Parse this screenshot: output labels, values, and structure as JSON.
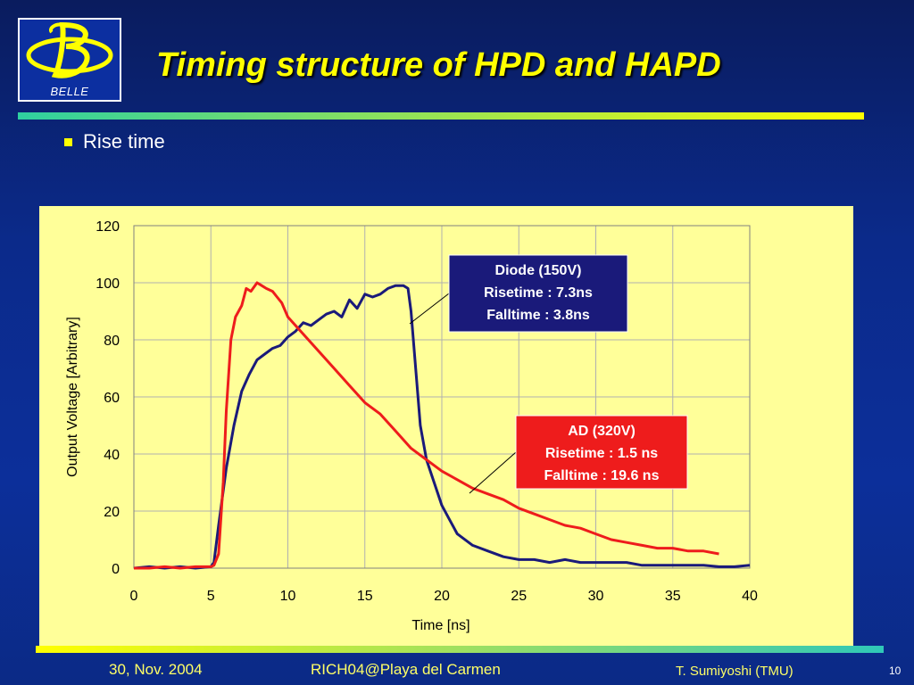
{
  "logo": {
    "text": "BELLE"
  },
  "slide": {
    "title": "Timing structure of HPD and HAPD",
    "bullet": "Rise time"
  },
  "footer": {
    "date": "30, Nov. 2004",
    "event": "RICH04@Playa del Carmen",
    "author": "T. Sumiyoshi (TMU)",
    "page": "10"
  },
  "colors": {
    "title": "#ffff00",
    "chart_background": "#ffff99",
    "diode_series": "#1a1a7a",
    "ad_series": "#ee1c1c"
  },
  "chart_data": {
    "type": "line",
    "xlabel": "Time [ns]",
    "ylabel": "Output Voltage [Arbitrary]",
    "xlim": [
      0,
      40
    ],
    "ylim": [
      0,
      120
    ],
    "xticks": [
      0,
      5,
      10,
      15,
      20,
      25,
      30,
      35,
      40
    ],
    "yticks": [
      0,
      20,
      40,
      60,
      80,
      100,
      120
    ],
    "grid": true,
    "series": [
      {
        "key": "diode",
        "color": "#1a1a7a",
        "x": [
          0,
          1,
          2,
          3,
          4,
          5,
          5.2,
          5.5,
          6,
          6.5,
          7,
          7.5,
          8,
          8.5,
          9,
          9.5,
          10,
          10.5,
          11,
          11.5,
          12,
          12.5,
          13,
          13.5,
          14,
          14.5,
          15,
          15.5,
          16,
          16.5,
          17,
          17.5,
          17.8,
          18,
          18.3,
          18.6,
          19,
          19.5,
          20,
          20.5,
          21,
          22,
          23,
          24,
          25,
          26,
          27,
          28,
          29,
          30,
          31,
          32,
          33,
          34,
          35,
          36,
          37,
          38,
          39,
          40
        ],
        "y": [
          0,
          0.5,
          0,
          0.5,
          0,
          0.5,
          2,
          15,
          35,
          50,
          62,
          68,
          73,
          75,
          77,
          78,
          81,
          83,
          86,
          85,
          87,
          89,
          90,
          88,
          94,
          91,
          96,
          95,
          96,
          98,
          99,
          99,
          98,
          90,
          70,
          50,
          38,
          30,
          22,
          17,
          12,
          8,
          6,
          4,
          3,
          3,
          2,
          3,
          2,
          2,
          2,
          2,
          1,
          1,
          1,
          1,
          1,
          0.5,
          0.5,
          1
        ]
      },
      {
        "key": "ad",
        "color": "#ee1c1c",
        "x": [
          0,
          1,
          2,
          3,
          4,
          5,
          5.2,
          5.5,
          5.8,
          6,
          6.3,
          6.6,
          7,
          7.3,
          7.6,
          8,
          8.3,
          8.6,
          9,
          9.3,
          9.6,
          10,
          11,
          12,
          13,
          14,
          15,
          16,
          17,
          18,
          19,
          20,
          21,
          22,
          23,
          24,
          25,
          26,
          27,
          28,
          29,
          30,
          31,
          32,
          33,
          34,
          35,
          36,
          37,
          38
        ],
        "y": [
          0,
          0,
          0.5,
          0,
          0.5,
          0.5,
          1,
          5,
          30,
          55,
          80,
          88,
          92,
          98,
          97,
          100,
          99,
          98,
          97,
          95,
          93,
          88,
          82,
          76,
          70,
          64,
          58,
          54,
          48,
          42,
          38,
          34,
          31,
          28,
          26,
          24,
          21,
          19,
          17,
          15,
          14,
          12,
          10,
          9,
          8,
          7,
          7,
          6,
          6,
          5
        ]
      }
    ],
    "annotations": [
      {
        "key": "diode",
        "lines": [
          "Diode (150V)",
          "Risetime : 7.3ns",
          "Falltime : 3.8ns"
        ]
      },
      {
        "key": "ad",
        "lines": [
          "AD (320V)",
          "Risetime : 1.5 ns",
          "Falltime : 19.6 ns"
        ]
      }
    ]
  }
}
